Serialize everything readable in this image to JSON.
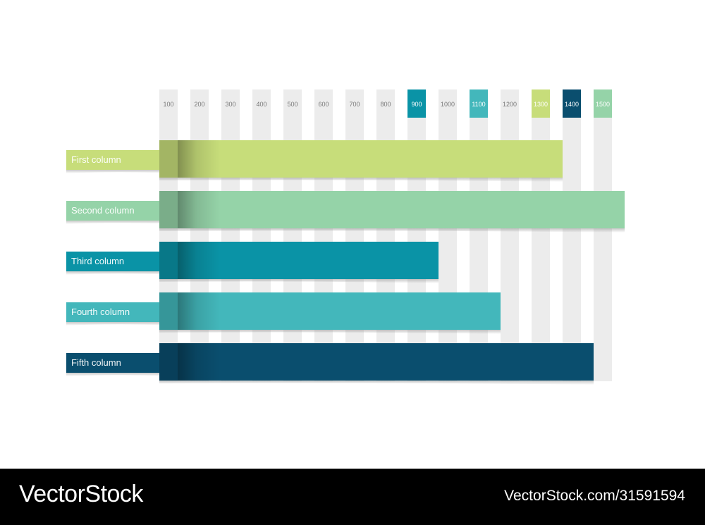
{
  "chart_data": {
    "type": "bar",
    "orientation": "horizontal",
    "x_ticks": [
      "100",
      "200",
      "300",
      "400",
      "500",
      "600",
      "700",
      "800",
      "900",
      "1000",
      "1100",
      "1200",
      "1300",
      "1400",
      "1500"
    ],
    "highlighted_ticks": [
      {
        "label": "900",
        "color": "#0a93a6"
      },
      {
        "label": "1100",
        "color": "#43b7bb"
      },
      {
        "label": "1300",
        "color": "#c7dd7a"
      },
      {
        "label": "1400",
        "color": "#0a4e6e"
      },
      {
        "label": "1500",
        "color": "#95d3a8"
      }
    ],
    "xlim": [
      0,
      1500
    ],
    "categories": [
      "First column",
      "Second column",
      "Third column",
      "Fourth column",
      "Fifth column"
    ],
    "values": [
      1300,
      1500,
      900,
      1100,
      1400
    ],
    "colors": [
      "#c7dd7a",
      "#95d3a8",
      "#0a93a6",
      "#43b7bb",
      "#0a4e6e"
    ],
    "grid": true,
    "legend": "none"
  },
  "footer": {
    "brand": "VectorStock",
    "url": "VectorStock.com/31591594"
  }
}
